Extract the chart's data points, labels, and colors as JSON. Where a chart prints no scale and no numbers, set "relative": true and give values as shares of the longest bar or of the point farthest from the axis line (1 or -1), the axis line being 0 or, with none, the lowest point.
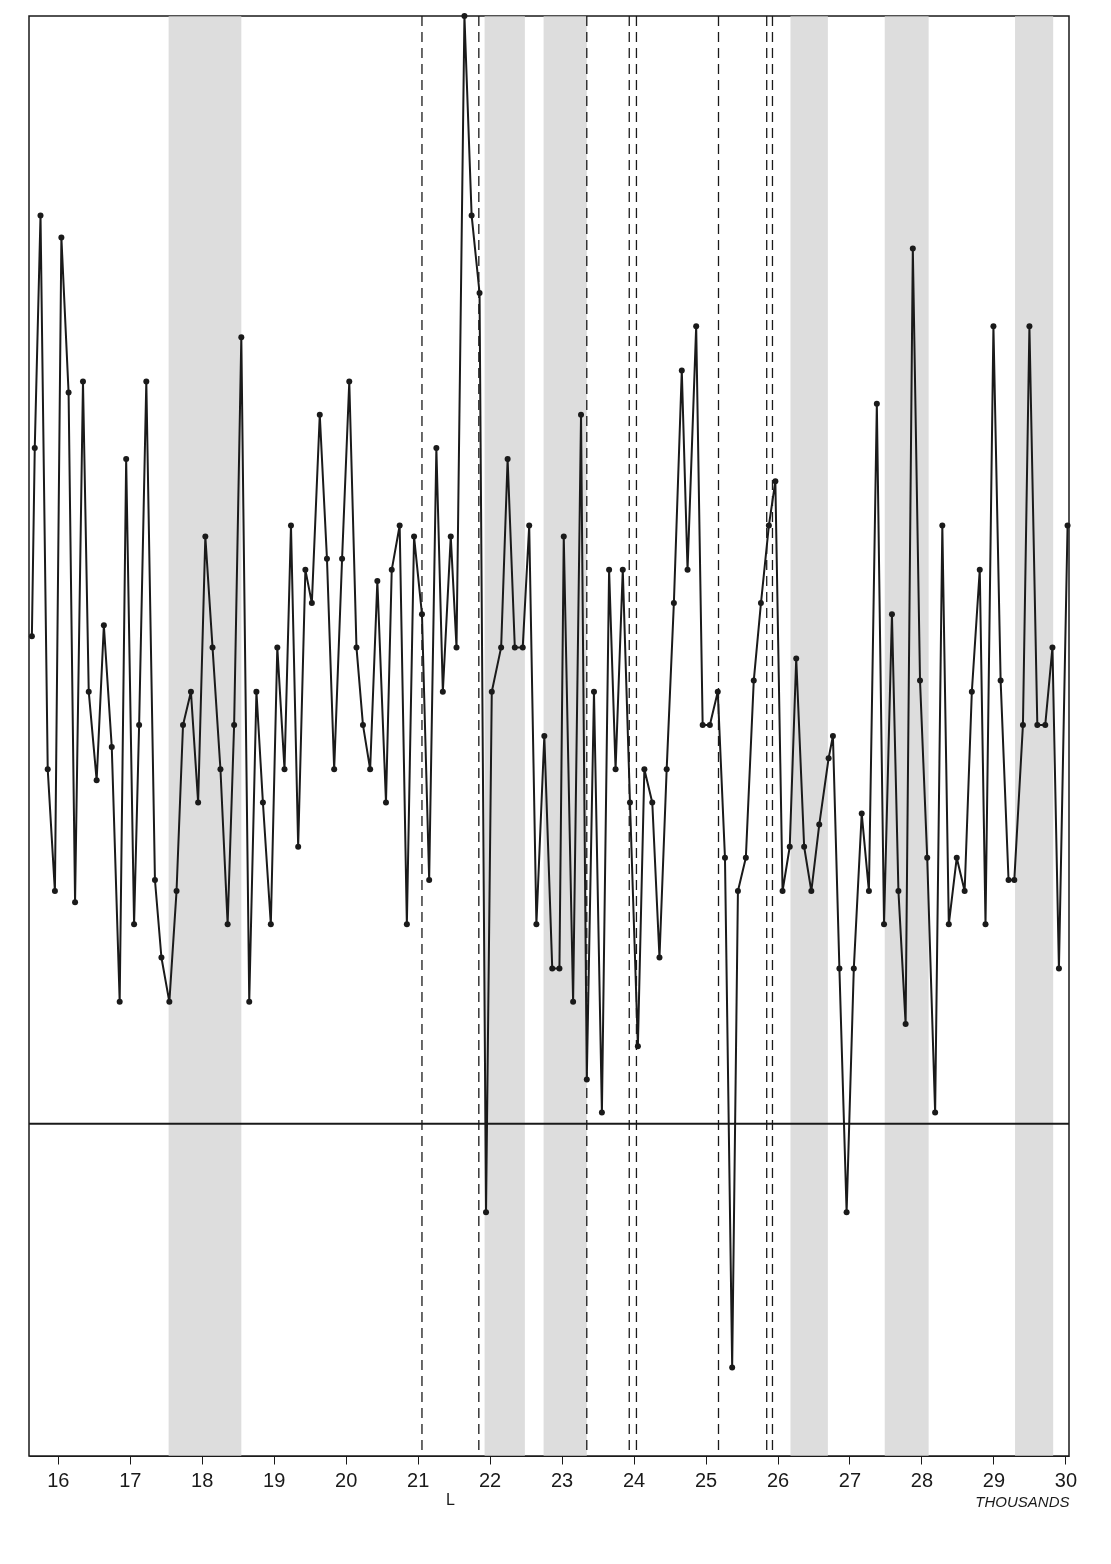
{
  "chart_data": {
    "type": "line",
    "relative": true,
    "xlabel": "THOUSANDS",
    "color": "#1a1a1a",
    "marker": "circle",
    "line_style": "solid",
    "grid": false,
    "x": [
      15.64,
      15.68,
      15.76,
      15.86,
      15.96,
      16.05,
      16.15,
      16.24,
      16.35,
      16.43,
      16.54,
      16.64,
      16.75,
      16.86,
      16.95,
      17.06,
      17.13,
      17.23,
      17.35,
      17.44,
      17.55,
      17.65,
      17.74,
      17.85,
      17.95,
      18.05,
      18.15,
      18.26,
      18.36,
      18.45,
      18.55,
      18.66,
      18.76,
      18.85,
      18.96,
      19.05,
      19.15,
      19.24,
      19.34,
      19.44,
      19.53,
      19.64,
      19.74,
      19.84,
      19.95,
      20.05,
      20.15,
      20.24,
      20.34,
      20.44,
      20.56,
      20.64,
      20.75,
      20.85,
      20.95,
      21.06,
      21.16,
      21.26,
      21.35,
      21.46,
      21.54,
      21.65,
      21.75,
      21.86,
      21.95,
      22.03,
      22.16,
      22.25,
      22.35,
      22.46,
      22.55,
      22.65,
      22.76,
      22.87,
      22.97,
      23.03,
      23.16,
      23.27,
      23.35,
      23.45,
      23.56,
      23.66,
      23.75,
      23.85,
      23.95,
      24.06,
      24.15,
      24.26,
      24.36,
      24.46,
      24.56,
      24.67,
      24.75,
      24.87,
      24.96,
      25.06,
      25.17,
      25.27,
      25.37,
      25.45,
      25.56,
      25.67,
      25.77,
      25.88,
      25.97,
      26.07,
      26.17,
      26.26,
      26.37,
      26.47,
      26.58,
      26.71,
      26.77,
      26.86,
      26.96,
      27.06,
      27.17,
      27.27,
      27.38,
      27.48,
      27.59,
      27.68,
      27.78,
      27.88,
      27.98,
      28.08,
      28.19,
      28.29,
      28.38,
      28.49,
      28.6,
      28.7,
      28.81,
      28.89,
      29.0,
      29.1,
      29.21,
      29.29,
      29.41,
      29.5,
      29.61,
      29.72,
      29.82,
      29.91,
      30.03
    ],
    "values": [
      0.44,
      0.61,
      0.82,
      0.32,
      0.21,
      0.8,
      0.66,
      0.2,
      0.67,
      0.39,
      0.31,
      0.45,
      0.34,
      0.11,
      0.6,
      0.18,
      0.36,
      0.67,
      0.22,
      0.15,
      0.11,
      0.21,
      0.36,
      0.39,
      0.29,
      0.53,
      0.43,
      0.32,
      0.18,
      0.36,
      0.71,
      0.11,
      0.39,
      0.29,
      0.18,
      0.43,
      0.32,
      0.54,
      0.25,
      0.5,
      0.47,
      0.64,
      0.51,
      0.32,
      0.51,
      0.67,
      0.43,
      0.36,
      0.32,
      0.49,
      0.29,
      0.5,
      0.54,
      0.18,
      0.53,
      0.46,
      0.22,
      0.61,
      0.39,
      0.53,
      0.43,
      1.0,
      0.82,
      0.75,
      -0.08,
      0.39,
      0.43,
      0.6,
      0.43,
      0.43,
      0.54,
      0.18,
      0.35,
      0.14,
      0.14,
      0.53,
      0.11,
      0.64,
      0.04,
      0.39,
      0.01,
      0.5,
      0.32,
      0.5,
      0.29,
      0.07,
      0.32,
      0.29,
      0.15,
      0.32,
      0.47,
      0.68,
      0.5,
      0.72,
      0.36,
      0.36,
      0.39,
      0.24,
      -0.22,
      0.21,
      0.24,
      0.4,
      0.47,
      0.54,
      0.58,
      0.21,
      0.25,
      0.42,
      0.25,
      0.21,
      0.27,
      0.33,
      0.35,
      0.14,
      -0.08,
      0.14,
      0.28,
      0.21,
      0.65,
      0.18,
      0.46,
      0.21,
      0.09,
      0.79,
      0.4,
      0.24,
      0.01,
      0.54,
      0.18,
      0.24,
      0.21,
      0.39,
      0.5,
      0.18,
      0.72,
      0.4,
      0.22,
      0.22,
      0.36,
      0.72,
      0.36,
      0.36,
      0.43,
      0.14,
      0.54
    ],
    "xlim": [
      15.6,
      30.05
    ],
    "xticks": [
      16,
      17,
      18,
      19,
      20,
      21,
      22,
      23,
      24,
      25,
      26,
      27,
      28,
      29,
      30
    ],
    "bands": [
      {
        "axis": "x",
        "from": 17.54,
        "to": 18.55,
        "color": "#cfcfcf"
      },
      {
        "axis": "x",
        "from": 21.93,
        "to": 22.49,
        "color": "#cfcfcf"
      },
      {
        "axis": "x",
        "from": 22.75,
        "to": 23.35,
        "color": "#cfcfcf"
      },
      {
        "axis": "x",
        "from": 26.18,
        "to": 26.7,
        "color": "#cfcfcf"
      },
      {
        "axis": "x",
        "from": 27.49,
        "to": 28.1,
        "color": "#cfcfcf"
      },
      {
        "axis": "x",
        "from": 29.3,
        "to": 29.83,
        "color": "#cfcfcf"
      }
    ],
    "ref_lines": [
      {
        "axis": "y",
        "value": 0,
        "line_style": "solid",
        "color": "#1a1a1a"
      },
      {
        "axis": "x",
        "value": 21.06,
        "line_style": "dashed",
        "color": "#1a1a1a"
      },
      {
        "axis": "x",
        "value": 21.85,
        "line_style": "dashed",
        "color": "#1a1a1a"
      },
      {
        "axis": "x",
        "value": 23.35,
        "line_style": "dashed",
        "color": "#1a1a1a"
      },
      {
        "axis": "x",
        "value": 23.94,
        "line_style": "dashed",
        "color": "#1a1a1a"
      },
      {
        "axis": "x",
        "value": 24.04,
        "line_style": "dashed",
        "color": "#1a1a1a"
      },
      {
        "axis": "x",
        "value": 25.18,
        "line_style": "dashed",
        "color": "#1a1a1a"
      },
      {
        "axis": "x",
        "value": 25.85,
        "line_style": "dashed",
        "color": "#1a1a1a"
      },
      {
        "axis": "x",
        "value": 25.93,
        "line_style": "dashed",
        "color": "#1a1a1a"
      }
    ],
    "annotations": [
      "L"
    ]
  }
}
